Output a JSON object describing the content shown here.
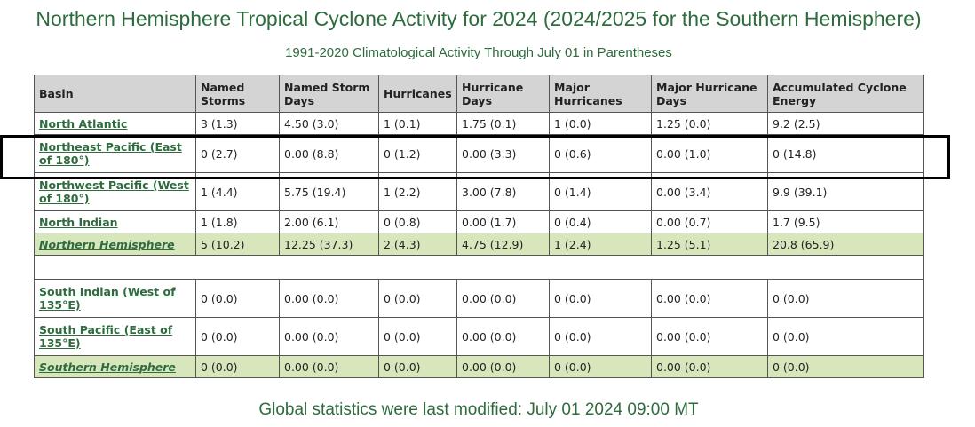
{
  "title": "Northern Hemisphere Tropical Cyclone Activity for 2024 (2024/2025 for the Southern Hemisphere)",
  "subtitle": "1991-2020 Climatological Activity Through July 01 in Parentheses",
  "columns": [
    "Basin",
    "Named Storms",
    "Named Storm Days",
    "Hurricanes",
    "Hurricane Days",
    "Major Hurricanes",
    "Major Hurricane Days",
    "Accumulated Cyclone Energy"
  ],
  "rows": [
    {
      "basin": "North Atlantic",
      "values": [
        "3 (1.3)",
        "4.50 (3.0)",
        "1 (0.1)",
        "1.75 (0.1)",
        "1 (0.0)",
        "1.25 (0.0)",
        "9.2 (2.5)"
      ]
    },
    {
      "basin": "Northeast Pacific (East of 180°)",
      "values": [
        "0 (2.7)",
        "0.00 (8.8)",
        "0 (1.2)",
        "0.00 (3.3)",
        "0 (0.6)",
        "0.00 (1.0)",
        "0 (14.8)"
      ]
    },
    {
      "basin": "Northwest Pacific (West of 180°)",
      "values": [
        "1 (4.4)",
        "5.75 (19.4)",
        "1 (2.2)",
        "3.00 (7.8)",
        "0 (1.4)",
        "0.00 (3.4)",
        "9.9 (39.1)"
      ]
    },
    {
      "basin": "North Indian",
      "values": [
        "1 (1.8)",
        "2.00 (6.1)",
        "0 (0.8)",
        "0.00 (1.7)",
        "0 (0.4)",
        "0.00 (0.7)",
        "1.7 (9.5)"
      ]
    },
    {
      "basin": "Northern Hemisphere",
      "values": [
        "5 (10.2)",
        "12.25 (37.3)",
        "2 (4.3)",
        "4.75 (12.9)",
        "1 (2.4)",
        "1.25 (5.1)",
        "20.8 (65.9)"
      ]
    },
    {
      "basin": "South Indian (West of 135°E)",
      "values": [
        "0 (0.0)",
        "0.00 (0.0)",
        "0 (0.0)",
        "0.00 (0.0)",
        "0 (0.0)",
        "0.00 (0.0)",
        "0 (0.0)"
      ]
    },
    {
      "basin": "South Pacific (East of 135°E)",
      "values": [
        "0 (0.0)",
        "0.00 (0.0)",
        "0 (0.0)",
        "0.00 (0.0)",
        "0 (0.0)",
        "0.00 (0.0)",
        "0 (0.0)"
      ]
    },
    {
      "basin": "Southern Hemisphere",
      "values": [
        "0 (0.0)",
        "0.00 (0.0)",
        "0 (0.0)",
        "0.00 (0.0)",
        "0 (0.0)",
        "0.00 (0.0)",
        "0 (0.0)"
      ]
    }
  ],
  "footer": "Global statistics were last modified: July 01 2024 09:00 MT",
  "colors": {
    "accent_green": "#2e6b3e",
    "header_gray": "#d4d4d4",
    "summary_row": "#d8e6bc",
    "highlight_box": "#000000"
  }
}
